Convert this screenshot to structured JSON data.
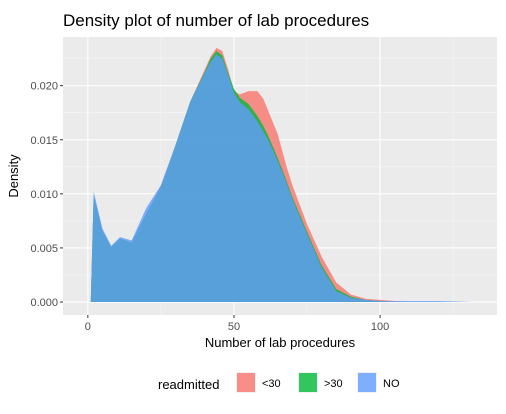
{
  "chart_data": {
    "type": "area",
    "title": "Density plot of number of lab procedures",
    "xlabel": "Number of lab procedures",
    "ylabel": "Density",
    "xlim": [
      -8.5,
      140
    ],
    "ylim": [
      -0.0012,
      0.0245
    ],
    "x_ticks": [
      0,
      50,
      100
    ],
    "x_tick_labels": [
      "0",
      "50",
      "100"
    ],
    "y_ticks": [
      0.0,
      0.005,
      0.01,
      0.015,
      0.02
    ],
    "y_tick_labels": [
      "0.000",
      "0.005",
      "0.010",
      "0.015",
      "0.020"
    ],
    "grid": true,
    "legend": {
      "title": "readmitted",
      "placement": "bottom"
    },
    "series": [
      {
        "name": "<30",
        "color": "#F8766D",
        "x": [
          1,
          2,
          5,
          8,
          11,
          15,
          20,
          25,
          30,
          35,
          40,
          42,
          44,
          46,
          48,
          50,
          52,
          55,
          58,
          60,
          62,
          65,
          68,
          70,
          75,
          80,
          85,
          90,
          95,
          100,
          105,
          110
        ],
        "y": [
          0.0,
          0.0098,
          0.0065,
          0.005,
          0.0058,
          0.0055,
          0.0082,
          0.0108,
          0.0145,
          0.0185,
          0.0215,
          0.0227,
          0.0235,
          0.0232,
          0.0215,
          0.0195,
          0.0192,
          0.0195,
          0.0195,
          0.0188,
          0.0175,
          0.0155,
          0.0125,
          0.0108,
          0.0072,
          0.0042,
          0.0018,
          0.0007,
          0.0003,
          0.0002,
          0.0001,
          0.0
        ]
      },
      {
        "name": ">30",
        "color": "#00BA38",
        "x": [
          1,
          2,
          5,
          8,
          11,
          15,
          20,
          25,
          30,
          35,
          40,
          42,
          44,
          46,
          48,
          50,
          52,
          55,
          58,
          60,
          62,
          65,
          68,
          70,
          75,
          80,
          85,
          90,
          95,
          100,
          105
        ],
        "y": [
          0.0,
          0.0099,
          0.0066,
          0.0051,
          0.0059,
          0.0055,
          0.0082,
          0.0106,
          0.0145,
          0.0185,
          0.0213,
          0.0225,
          0.0232,
          0.0228,
          0.0212,
          0.0197,
          0.0189,
          0.0183,
          0.0172,
          0.0163,
          0.0152,
          0.0133,
          0.0112,
          0.0097,
          0.0065,
          0.0034,
          0.0012,
          0.0005,
          0.0002,
          0.0001,
          0.0
        ]
      },
      {
        "name": "NO",
        "color": "#619CFF",
        "x": [
          1,
          2,
          5,
          8,
          11,
          15,
          20,
          25,
          30,
          35,
          40,
          42,
          44,
          46,
          48,
          50,
          52,
          55,
          58,
          60,
          62,
          65,
          68,
          70,
          75,
          80,
          85,
          90,
          95,
          100,
          110,
          120,
          132
        ],
        "y": [
          0.0,
          0.0102,
          0.0068,
          0.0052,
          0.006,
          0.0057,
          0.0087,
          0.0108,
          0.0145,
          0.0185,
          0.0212,
          0.0222,
          0.0229,
          0.0225,
          0.021,
          0.0193,
          0.0185,
          0.0178,
          0.0167,
          0.0158,
          0.0148,
          0.013,
          0.011,
          0.0095,
          0.0063,
          0.0032,
          0.001,
          0.0004,
          0.0002,
          0.0001,
          0.0001,
          0.0001,
          0.0
        ]
      }
    ]
  }
}
